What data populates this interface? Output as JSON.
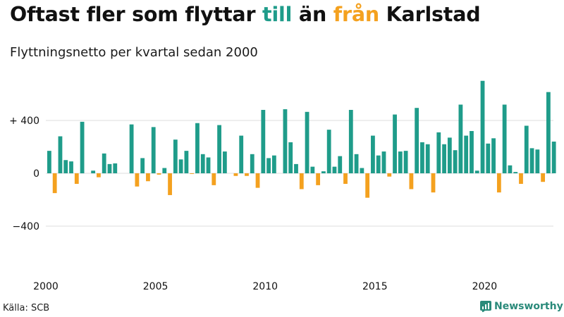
{
  "title": {
    "part1": "Oftast fler som flyttar ",
    "part2": "till",
    "part3": " än ",
    "part4": "från",
    "part5": " Karlstad"
  },
  "subtitle": "Flyttningsnetto per kvartal sedan 2000",
  "source": "Källa: SCB",
  "brand": "Newsworthy",
  "colors": {
    "positive": "#1f9c8a",
    "negative": "#f4a11f",
    "grid": "#dddddd",
    "text": "#111111"
  },
  "chart_data": {
    "type": "bar",
    "title": "Oftast fler som flyttar till än från Karlstad",
    "subtitle": "Flyttningsnetto per kvartal sedan 2000",
    "x_start": 2000,
    "periods_per_year": 4,
    "xticks": [
      "2000",
      "2005",
      "2010",
      "2015",
      "2020"
    ],
    "xtick_values": [
      2000,
      2005,
      2010,
      2015,
      2020
    ],
    "yticks": [
      400,
      0,
      -400
    ],
    "ytick_labels": [
      "+ 400",
      "0",
      "−400"
    ],
    "ylim": [
      -800,
      700
    ],
    "grid": true,
    "values": [
      170,
      -150,
      280,
      100,
      90,
      -80,
      390,
      0,
      20,
      -30,
      150,
      70,
      75,
      0,
      0,
      370,
      -100,
      115,
      -60,
      350,
      -10,
      40,
      -165,
      255,
      105,
      170,
      -5,
      380,
      145,
      120,
      -90,
      365,
      165,
      0,
      -20,
      285,
      -20,
      145,
      -110,
      480,
      115,
      135,
      0,
      485,
      235,
      70,
      -120,
      465,
      50,
      -90,
      15,
      330,
      50,
      130,
      -80,
      480,
      145,
      40,
      -185,
      285,
      135,
      165,
      -25,
      445,
      165,
      170,
      -120,
      495,
      235,
      220,
      -145,
      310,
      220,
      270,
      175,
      520,
      285,
      320,
      20,
      700,
      225,
      265,
      -145,
      520,
      60,
      10,
      -80,
      360,
      190,
      180,
      -65,
      615,
      240
    ]
  }
}
